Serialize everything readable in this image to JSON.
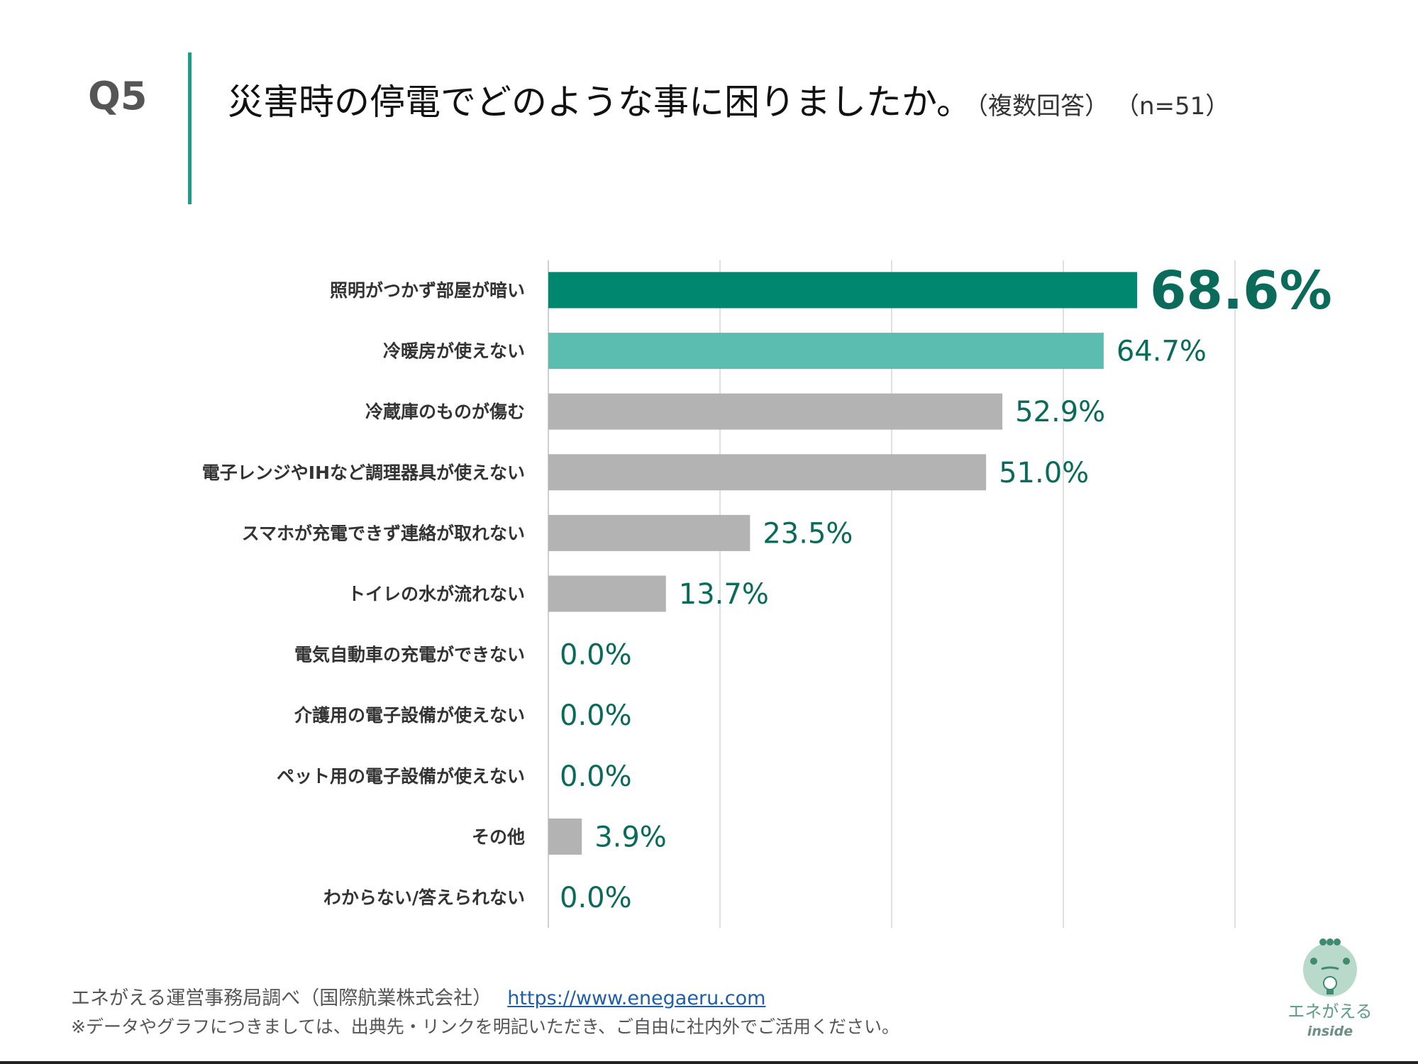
{
  "header": {
    "question_no": "Q5",
    "title": "災害時の停電でどのような事に困りましたか。",
    "subtitle": "（複数回答）",
    "sample": "（n=51）"
  },
  "chart_data": {
    "type": "bar",
    "orientation": "horizontal",
    "categories": [
      "照明がつかず部屋が暗い",
      "冷暖房が使えない",
      "冷蔵庫のものが傷む",
      "電子レンジやIHなど調理器具が使えない",
      "スマホが充電できず連絡が取れない",
      "トイレの水が流れない",
      "電気自動車の充電ができない",
      "介護用の電子設備が使えない",
      "ペット用の電子設備が使えない",
      "その他",
      "わからない/答えられない"
    ],
    "values": [
      68.6,
      64.7,
      52.9,
      51.0,
      23.5,
      13.7,
      0.0,
      0.0,
      0.0,
      3.9,
      0.0
    ],
    "value_labels": [
      "68.6%",
      "64.7%",
      "52.9%",
      "51.0%",
      "23.5%",
      "13.7%",
      "0.0%",
      "0.0%",
      "0.0%",
      "3.9%",
      "0.0%"
    ],
    "xlim": [
      0,
      80
    ],
    "gridlines": [
      0,
      20,
      40,
      60,
      80
    ],
    "grid": true,
    "colors": {
      "top1": "#00876f",
      "top2": "#5bbcb0",
      "other": "#b3b3b3",
      "label": "#0a6b5a"
    }
  },
  "footer": {
    "source": "エネがえる運営事務局調べ（国際航業株式会社）",
    "url": "https://www.enegaeru.com",
    "note": "※データやグラフにつきましては、出典先・リンクを明記いただき、ご自由に社内外でご活用ください。"
  },
  "logo": {
    "text": "エネがえる",
    "sub": "inside"
  }
}
